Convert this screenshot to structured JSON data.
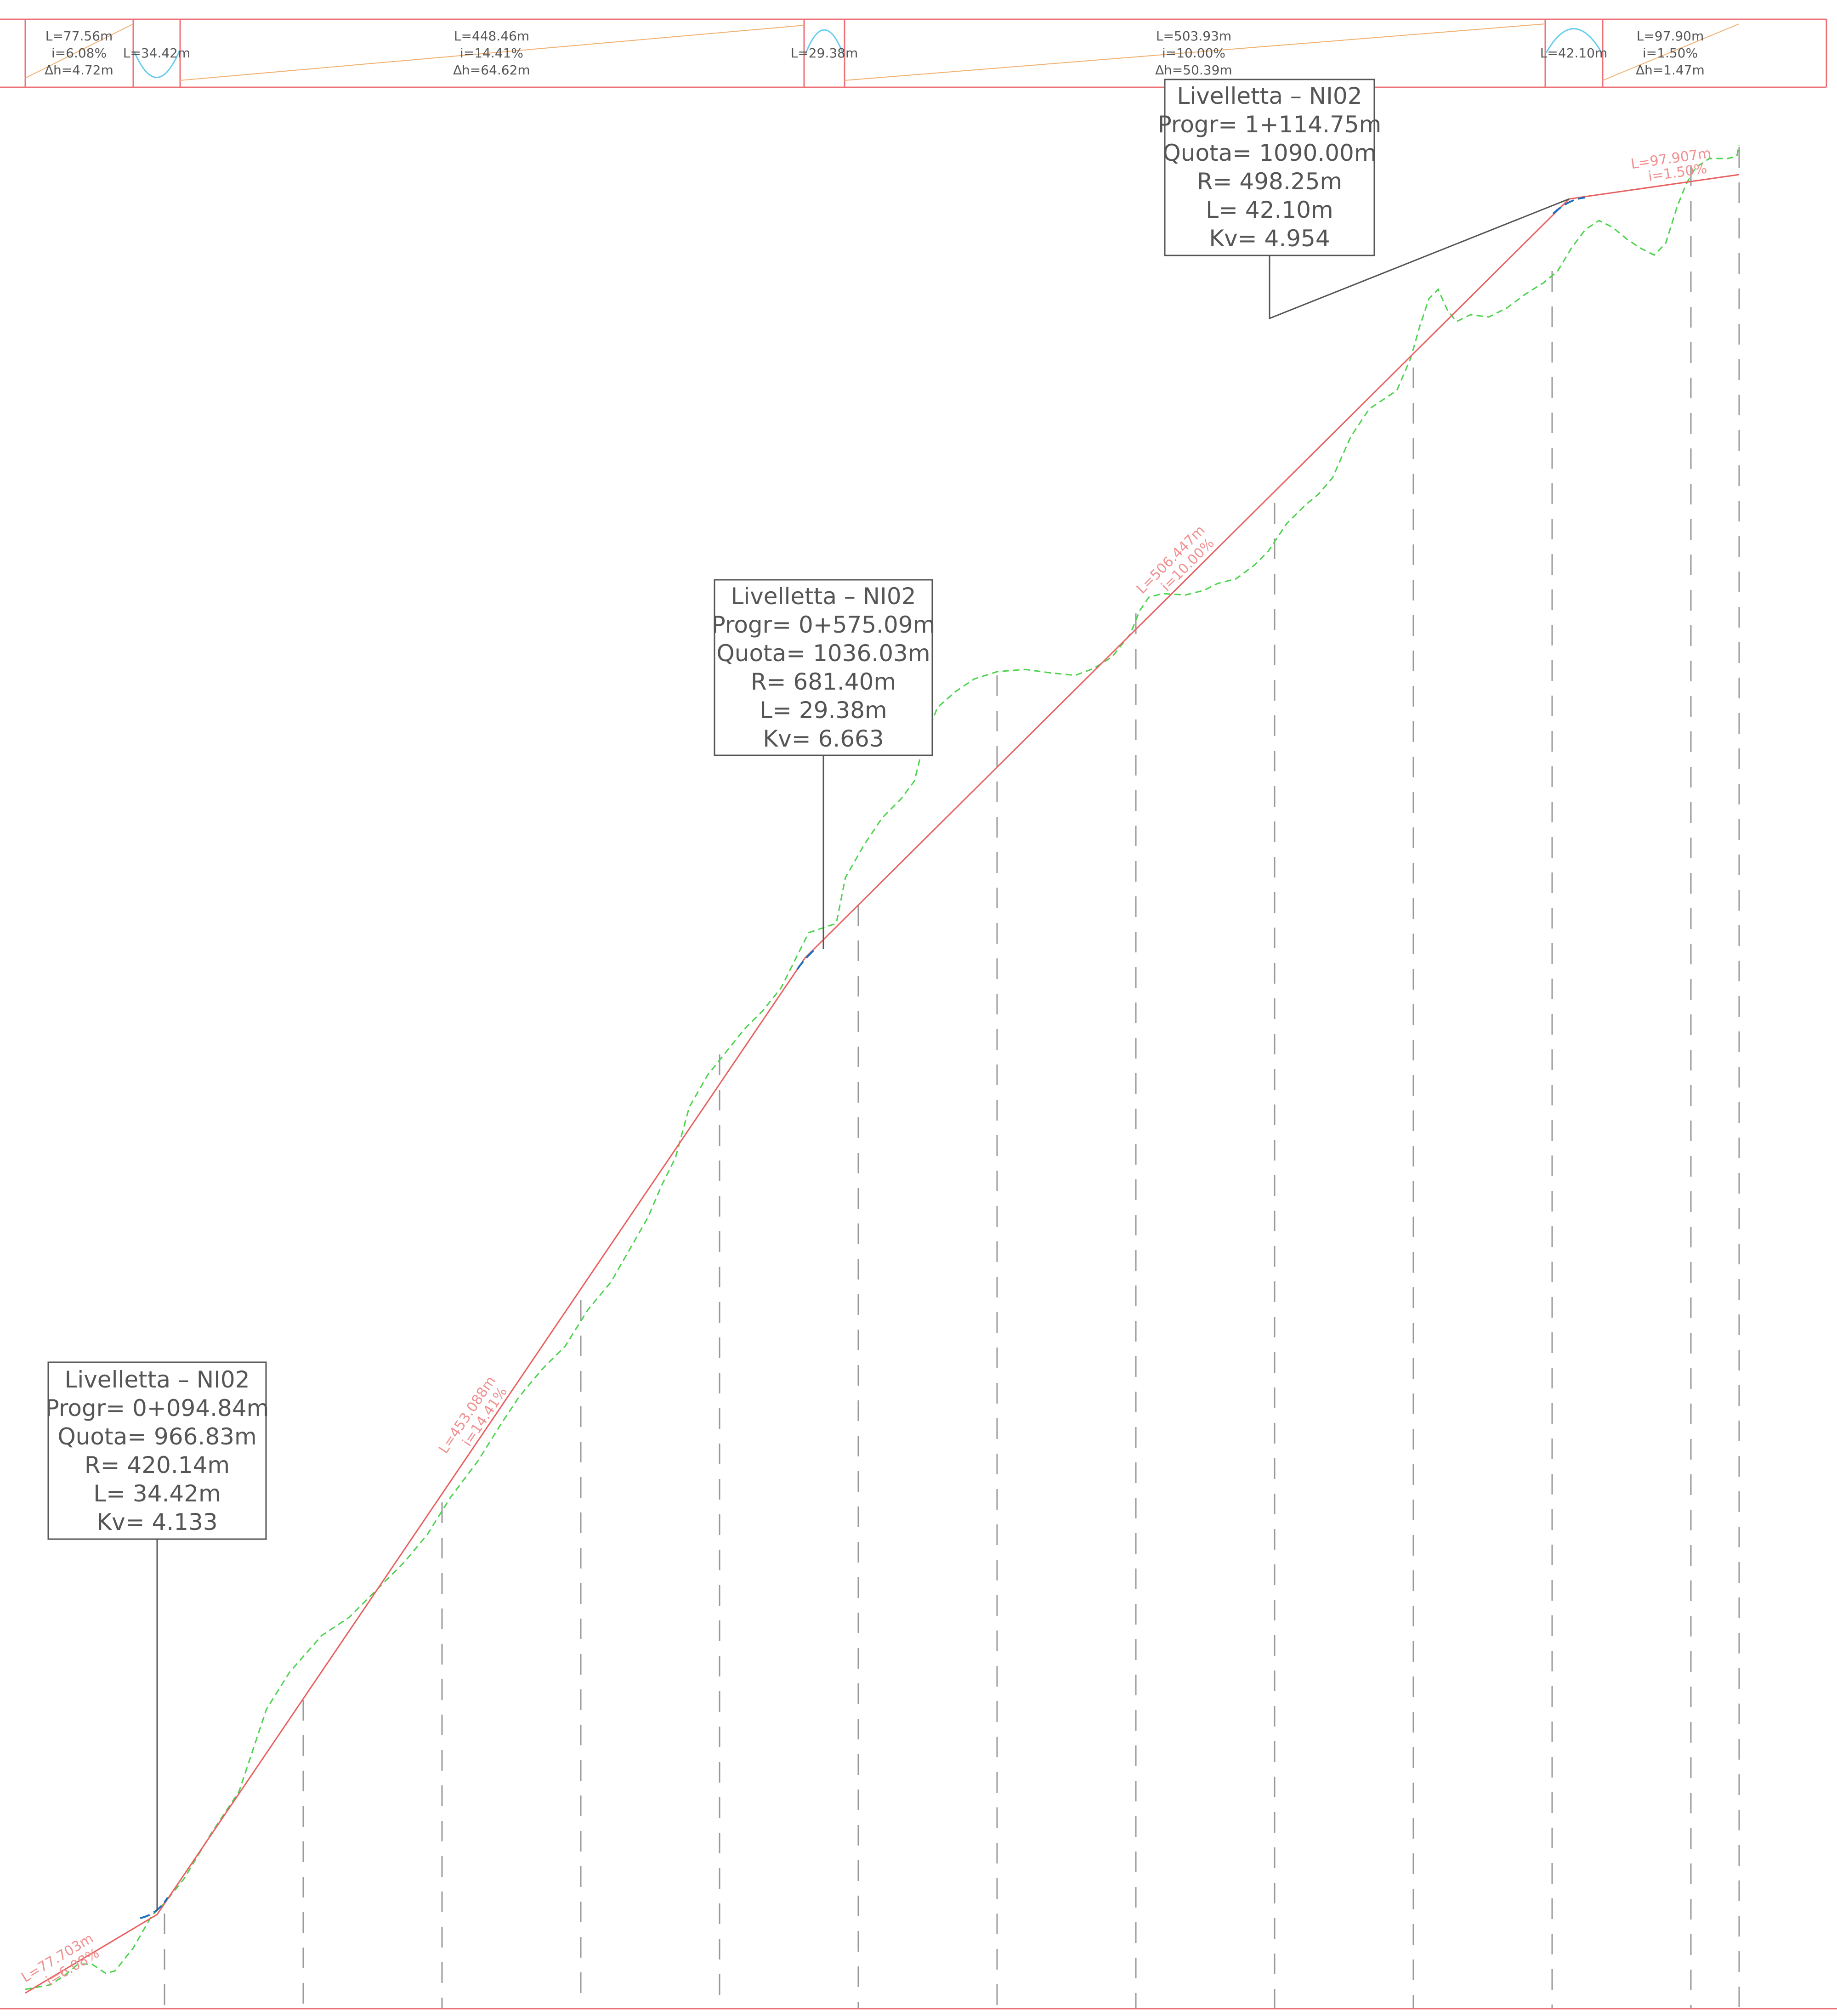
{
  "colors": {
    "band_border": "#ee7077",
    "grade_line_band": "#f0b070",
    "curve_symbol": "#66ccee",
    "design_profile": "#e86060",
    "ground_profile": "#4cd34c",
    "leader": "#555555",
    "label_text": "#555555",
    "segment_label": "#f09090",
    "station_line": "#999999",
    "curve_tangent": "#1f6fbf"
  },
  "band": {
    "segments": [
      {
        "length": "L=77.56m",
        "grade": "i=6.08%",
        "dh": "∆h=4.72m"
      },
      {
        "curve_length": "L=34.42m"
      },
      {
        "length": "L=448.46m",
        "grade": "i=14.41%",
        "dh": "∆h=64.62m"
      },
      {
        "curve_length": "L=29.38m"
      },
      {
        "length": "L=503.93m",
        "grade": "i=10.00%",
        "dh": "∆h=50.39m"
      },
      {
        "curve_length": "L=42.10m"
      },
      {
        "length": "L=97.90m",
        "grade": "i=1.50%",
        "dh": "∆h=1.47m"
      }
    ]
  },
  "profile_labels": [
    {
      "length": "L=77.703m",
      "grade": "i=6.08%"
    },
    {
      "length": "L=453.088m",
      "grade": "i=14.41%"
    },
    {
      "length": "L=506.447m",
      "grade": "i=10.00%"
    },
    {
      "length": "L=97.907m",
      "grade": "i=1.50%"
    }
  ],
  "vertices": [
    {
      "title": "Livelletta  –  NI02",
      "progr": "Progr=  0+094.84m",
      "quota": "Quota=  966.83m",
      "radius": "R=  420.14m",
      "length": "L=  34.42m",
      "kv": "Kv=  4.133"
    },
    {
      "title": "Livelletta  –  NI02",
      "progr": "Progr=  0+575.09m",
      "quota": "Quota=  1036.03m",
      "radius": "R=  681.40m",
      "length": "L=  29.38m",
      "kv": "Kv=  6.663"
    },
    {
      "title": "Livelletta  –  NI02",
      "progr": "Progr=  1+114.75m",
      "quota": "Quota=  1090.00m",
      "radius": "R=  498.25m",
      "length": "L=  42.10m",
      "kv": "Kv=  4.954"
    }
  ]
}
